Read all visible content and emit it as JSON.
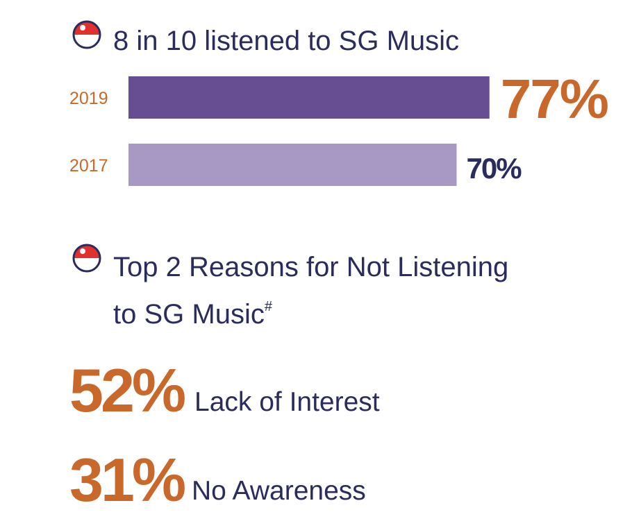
{
  "chart_data": {
    "type": "bar",
    "title": "8 in 10 listened to SG Music",
    "categories": [
      "2019",
      "2017"
    ],
    "values": [
      77,
      70
    ],
    "value_labels": [
      "77%",
      "70%"
    ],
    "colors": [
      "#674e93",
      "#a898c4"
    ]
  },
  "reasons_section": {
    "title_lines": [
      "Top 2 Reasons for Not Listening",
      "to SG Music"
    ],
    "footnote_mark": "#",
    "reasons": [
      {
        "percent": "52%",
        "text": "Lack of Interest"
      },
      {
        "percent": "31%",
        "text": "No Awareness"
      }
    ]
  }
}
